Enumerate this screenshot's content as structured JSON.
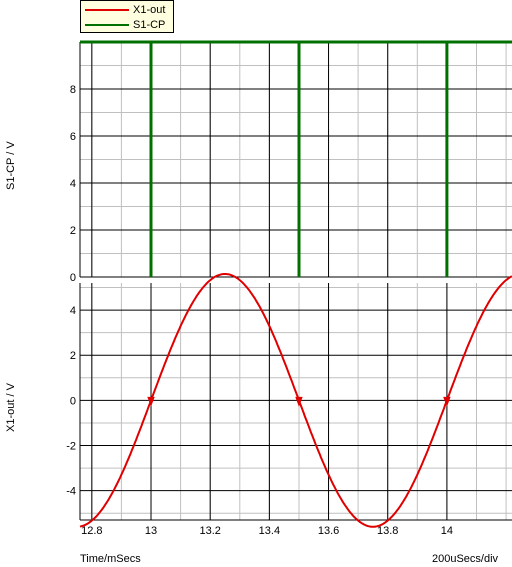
{
  "legend": {
    "items": [
      {
        "label": "X1-out",
        "color": "#e00000"
      },
      {
        "label": "S1-CP",
        "color": "#007000"
      }
    ]
  },
  "footer": {
    "x_label": "Time/mSecs",
    "scale": "200uSecs/div"
  },
  "chart_data": [
    {
      "type": "line",
      "name": "top-panel",
      "ylabel": "S1-CP / V",
      "xlim": [
        12.76,
        14.22
      ],
      "ylim": [
        0,
        10
      ],
      "y_ticks": [
        0,
        2,
        4,
        6,
        8
      ],
      "grid": true,
      "series": [
        {
          "name": "S1-CP",
          "color": "#007000",
          "points": [
            [
              12.76,
              10
            ],
            [
              13.0,
              10
            ],
            [
              13.0,
              0
            ],
            [
              13.0,
              10
            ],
            [
              13.5,
              10
            ],
            [
              13.5,
              0
            ],
            [
              13.5,
              10
            ],
            [
              14.0,
              10
            ],
            [
              14.0,
              0
            ],
            [
              14.0,
              10
            ],
            [
              14.22,
              10
            ]
          ]
        }
      ]
    },
    {
      "type": "line",
      "name": "bottom-panel",
      "ylabel": "X1-out / V",
      "xlim": [
        12.76,
        14.22
      ],
      "ylim": [
        -5.3,
        5.2
      ],
      "y_ticks": [
        -4,
        -2,
        0,
        2,
        4
      ],
      "x_ticks": [
        12.8,
        13.0,
        13.2,
        13.4,
        13.6,
        13.8,
        14.0
      ],
      "x_tick_labels": [
        "12.8",
        "13",
        "13.2",
        "13.4",
        "13.6",
        "13.8",
        "14"
      ],
      "grid": true,
      "series": [
        {
          "name": "X1-out",
          "color": "#e00000",
          "function": "sine",
          "amplitude": 5.6,
          "period": 1.0,
          "zero_crossing_rising": 13.0,
          "markers_x": [
            13.0,
            13.5,
            14.0
          ]
        }
      ]
    }
  ]
}
